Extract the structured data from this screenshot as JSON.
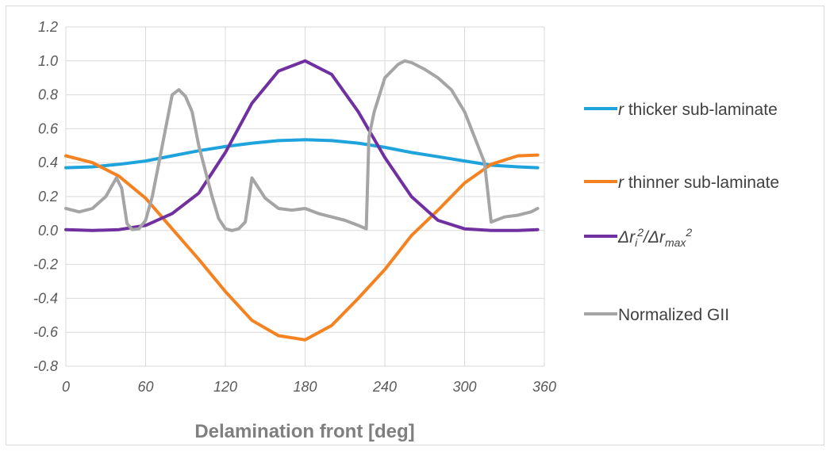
{
  "chart_data": {
    "type": "line",
    "title": "",
    "xlabel": "Delamination front [deg]",
    "ylabel": "",
    "xlim": [
      0,
      360
    ],
    "ylim": [
      -0.8,
      1.2
    ],
    "x_ticks": [
      "0",
      "60",
      "120",
      "180",
      "240",
      "300",
      "360"
    ],
    "y_ticks": [
      "-0.8",
      "-0.6",
      "-0.4",
      "-0.2",
      "0.0",
      "0.2",
      "0.4",
      "0.6",
      "0.8",
      "1.0",
      "1.2"
    ],
    "grid": "vertical and horizontal major gridlines",
    "legend_position": "right",
    "series": [
      {
        "name": "r thicker sub-laminate",
        "legend_prefix": "r",
        "legend_rest": " thicker sub-laminate",
        "color": "#1ea3dc",
        "x": [
          0,
          20,
          40,
          60,
          80,
          100,
          120,
          140,
          160,
          180,
          200,
          220,
          240,
          260,
          280,
          300,
          320,
          340,
          355
        ],
        "y": [
          0.37,
          0.375,
          0.39,
          0.41,
          0.44,
          0.47,
          0.495,
          0.515,
          0.53,
          0.535,
          0.53,
          0.515,
          0.49,
          0.46,
          0.435,
          0.41,
          0.385,
          0.375,
          0.37
        ]
      },
      {
        "name": "r thinner sub-laminate",
        "legend_prefix": "r",
        "legend_rest": " thinner sub-laminate",
        "color": "#f58220",
        "x": [
          0,
          20,
          40,
          60,
          80,
          100,
          120,
          140,
          160,
          180,
          200,
          220,
          240,
          260,
          280,
          300,
          320,
          340,
          355
        ],
        "y": [
          0.44,
          0.4,
          0.32,
          0.19,
          0.01,
          -0.17,
          -0.36,
          -0.53,
          -0.62,
          -0.645,
          -0.56,
          -0.4,
          -0.23,
          -0.03,
          0.12,
          0.28,
          0.39,
          0.44,
          0.445
        ]
      },
      {
        "name": "Δri²/Δrmax²",
        "legend_parts": [
          "Δr",
          "i",
          "2",
          "/Δr",
          "max",
          "2"
        ],
        "color": "#7030a0",
        "x": [
          0,
          20,
          40,
          60,
          80,
          100,
          120,
          140,
          160,
          180,
          200,
          220,
          240,
          260,
          280,
          300,
          320,
          340,
          355
        ],
        "y": [
          0.005,
          0.0,
          0.005,
          0.03,
          0.1,
          0.22,
          0.46,
          0.75,
          0.94,
          1.0,
          0.92,
          0.7,
          0.43,
          0.2,
          0.06,
          0.01,
          0.0,
          0.0,
          0.005
        ]
      },
      {
        "name": "Normalized GII",
        "color": "#a5a5a5",
        "x": [
          0,
          10,
          20,
          30,
          38,
          42,
          46,
          50,
          55,
          60,
          65,
          70,
          80,
          85,
          90,
          95,
          100,
          110,
          115,
          120,
          125,
          130,
          135,
          138,
          140,
          150,
          160,
          170,
          180,
          190,
          200,
          210,
          220,
          226,
          228,
          232,
          240,
          250,
          255,
          260,
          270,
          280,
          290,
          300,
          310,
          315,
          320,
          330,
          340,
          350,
          355
        ],
        "y": [
          0.13,
          0.11,
          0.13,
          0.2,
          0.31,
          0.25,
          0.04,
          0.005,
          0.01,
          0.06,
          0.2,
          0.4,
          0.8,
          0.83,
          0.79,
          0.7,
          0.5,
          0.2,
          0.07,
          0.01,
          0.0,
          0.01,
          0.05,
          0.2,
          0.31,
          0.19,
          0.13,
          0.12,
          0.13,
          0.1,
          0.08,
          0.06,
          0.03,
          0.01,
          0.55,
          0.7,
          0.9,
          0.98,
          1.0,
          0.99,
          0.95,
          0.9,
          0.83,
          0.7,
          0.5,
          0.4,
          0.05,
          0.08,
          0.09,
          0.11,
          0.13
        ]
      }
    ]
  }
}
